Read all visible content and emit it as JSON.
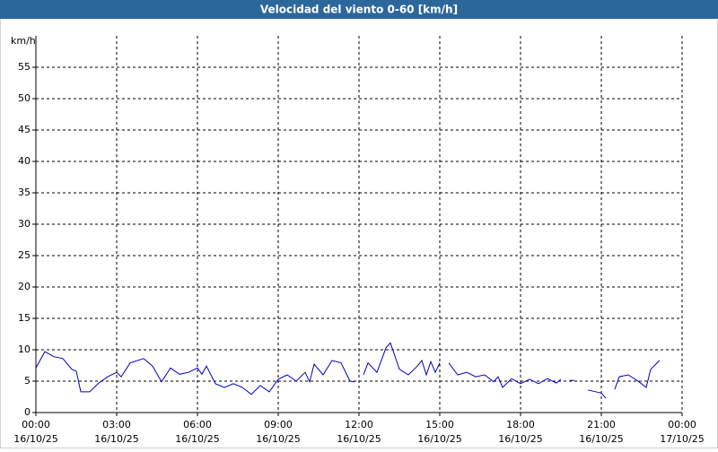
{
  "chart_data": {
    "type": "line",
    "title": "Velocidad del viento 0-60 [km/h]",
    "y_label": "km/h",
    "xlim": [
      0,
      1440
    ],
    "xticks": [
      {
        "value": 0,
        "label": "00:00\n16/10/25"
      },
      {
        "value": 180,
        "label": "03:00\n16/10/25"
      },
      {
        "value": 360,
        "label": "06:00\n16/10/25"
      },
      {
        "value": 540,
        "label": "09:00\n16/10/25"
      },
      {
        "value": 720,
        "label": "12:00\n16/10/25"
      },
      {
        "value": 900,
        "label": "15:00\n16/10/25"
      },
      {
        "value": 1080,
        "label": "18:00\n16/10/25"
      },
      {
        "value": 1260,
        "label": "21:00\n16/10/25"
      },
      {
        "value": 1440,
        "label": "00:00\n17/10/25"
      }
    ],
    "ylim": [
      0,
      60
    ],
    "yticks": [
      0,
      5,
      10,
      15,
      20,
      25,
      30,
      35,
      40,
      45,
      50,
      55
    ],
    "grid": true,
    "series": [
      {
        "name": "Velocidad del viento",
        "color": "#0000c0",
        "x": [
          0,
          20,
          40,
          60,
          80,
          90,
          100,
          120,
          140,
          160,
          180,
          190,
          210,
          240,
          260,
          280,
          300,
          320,
          340,
          360,
          370,
          380,
          400,
          420,
          440,
          460,
          480,
          500,
          520,
          540,
          560,
          580,
          600,
          610,
          620,
          640,
          660,
          680,
          700,
          710,
          720,
          730,
          740,
          760,
          780,
          790,
          810,
          830,
          850,
          860,
          870,
          880,
          890,
          900,
          910,
          920,
          940,
          960,
          980,
          1000,
          1020,
          1030,
          1040,
          1060,
          1080,
          1100,
          1120,
          1140,
          1160,
          1170,
          1180,
          1190,
          1200,
          1210,
          1230,
          1260,
          1270,
          1280,
          1290,
          1300,
          1320,
          1340,
          1360,
          1370,
          1390
        ],
        "values": [
          7.1,
          9.7,
          8.9,
          8.6,
          6.9,
          6.6,
          3.3,
          3.3,
          4.7,
          5.7,
          6.4,
          5.7,
          7.9,
          8.6,
          7.4,
          4.9,
          7.1,
          6.1,
          6.4,
          7.1,
          6.1,
          7.4,
          4.6,
          4.0,
          4.6,
          4.0,
          2.9,
          4.3,
          3.3,
          5.3,
          6.0,
          5.0,
          6.4,
          4.9,
          7.7,
          6.0,
          8.3,
          7.9,
          5.0,
          4.9,
          null,
          6.0,
          7.9,
          6.4,
          10.3,
          11.1,
          6.9,
          6.0,
          7.4,
          8.3,
          6.0,
          8.1,
          6.4,
          7.9,
          null,
          7.9,
          6.0,
          6.4,
          5.7,
          6.0,
          4.9,
          5.7,
          4.0,
          5.4,
          4.6,
          5.3,
          4.6,
          5.4,
          4.7,
          5.3,
          null,
          5.1,
          5.1,
          null,
          3.6,
          3.1,
          2.3,
          null,
          3.7,
          5.7,
          6.0,
          5.1,
          4.0,
          6.9,
          8.3
        ]
      }
    ]
  }
}
